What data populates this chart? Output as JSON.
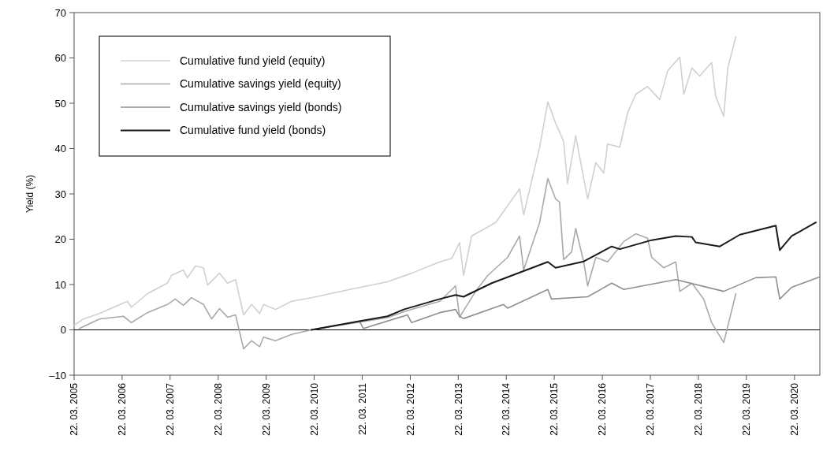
{
  "chart_data": {
    "type": "line",
    "ylabel": "Yield (%)",
    "xlim": [
      "2005-03-22",
      "2020-10-01"
    ],
    "xticks": [
      {
        "value": "2005-03-22",
        "label": "22. 03. 2005"
      },
      {
        "value": "2006-03-22",
        "label": "22. 03. 2006"
      },
      {
        "value": "2007-03-22",
        "label": "22. 03. 2007"
      },
      {
        "value": "2008-03-22",
        "label": "22. 03. 2008"
      },
      {
        "value": "2009-03-22",
        "label": "22. 03. 2009"
      },
      {
        "value": "2010-03-22",
        "label": "22. 03. 2010"
      },
      {
        "value": "2011-03-22",
        "label": "22. 03. 2011"
      },
      {
        "value": "2012-03-22",
        "label": "22. 03. 2012"
      },
      {
        "value": "2013-03-22",
        "label": "22. 03. 2013"
      },
      {
        "value": "2014-03-22",
        "label": "22. 03. 2014"
      },
      {
        "value": "2015-03-22",
        "label": "22. 03. 2015"
      },
      {
        "value": "2016-03-22",
        "label": "22. 03. 2016"
      },
      {
        "value": "2017-03-22",
        "label": "22. 03. 2017"
      },
      {
        "value": "2018-03-22",
        "label": "22. 03. 2018"
      },
      {
        "value": "2019-03-22",
        "label": "22. 03. 2019"
      },
      {
        "value": "2020-03-22",
        "label": "22. 03. 2020"
      }
    ],
    "ylim": [
      -10,
      70
    ],
    "yticks": [
      {
        "value": -10,
        "label": "–10"
      },
      0,
      10,
      20,
      30,
      40,
      50,
      60,
      70
    ],
    "grid": false,
    "legend": "top left",
    "marker": "none",
    "line_style": "solid",
    "ref_lines": [
      {
        "axis": "y",
        "value": 0,
        "color": "#000000"
      }
    ],
    "series": [
      {
        "name": "Cumulative fund yield (equity)",
        "color": "#d0d0d0",
        "x": [
          "2005-03-22",
          "2005-06",
          "2005-10",
          "2006-05",
          "2006-06",
          "2006-10",
          "2007-03",
          "2007-04",
          "2007-07",
          "2007-08",
          "2007-10",
          "2007-12",
          "2008-01",
          "2008-04",
          "2008-06",
          "2008-08",
          "2008-10",
          "2008-12",
          "2009-02",
          "2009-03",
          "2009-06",
          "2009-10",
          "2010-03",
          "2011-01",
          "2011-10",
          "2012-04",
          "2012-11",
          "2013-02",
          "2013-04",
          "2013-05",
          "2013-07",
          "2014-01",
          "2014-07",
          "2014-08",
          "2014-12",
          "2015-02",
          "2015-04",
          "2015-06",
          "2015-07",
          "2015-09",
          "2015-12",
          "2016-02",
          "2016-04",
          "2016-05",
          "2016-08",
          "2016-10",
          "2016-12",
          "2017-03",
          "2017-06",
          "2017-08",
          "2017-11",
          "2017-12",
          "2018-02",
          "2018-04",
          "2018-07",
          "2018-08",
          "2018-10",
          "2018-11",
          "2019-01"
        ],
        "values": [
          1.0,
          2.4,
          3.6,
          6.3,
          5.0,
          8.0,
          10.3,
          12.0,
          13.2,
          11.5,
          14.1,
          13.7,
          9.9,
          12.5,
          10.3,
          11.1,
          3.3,
          5.6,
          3.6,
          5.6,
          4.5,
          6.3,
          7.1,
          9.0,
          10.6,
          12.5,
          15.0,
          15.8,
          19.3,
          12.0,
          20.7,
          23.7,
          31.1,
          25.4,
          40.3,
          50.3,
          45.6,
          41.6,
          32.3,
          42.8,
          28.9,
          36.9,
          34.6,
          41.0,
          40.3,
          48.0,
          52.0,
          53.7,
          50.8,
          57.2,
          60.2,
          52.0,
          57.8,
          56.0,
          59.0,
          51.5,
          47.1,
          57.8,
          64.7
        ]
      },
      {
        "name": "Cumulative savings yield (equity)",
        "color": "#a9a9a9",
        "x": [
          "2005-05",
          "2005-10",
          "2006-04",
          "2006-06",
          "2006-10",
          "2007-03",
          "2007-05",
          "2007-07",
          "2007-09",
          "2007-12",
          "2008-02",
          "2008-04",
          "2008-06",
          "2008-08",
          "2008-10",
          "2008-12",
          "2009-02",
          "2009-03",
          "2009-06",
          "2009-10",
          "2010-03",
          "2011-03",
          "2011-10",
          "2012-02",
          "2012-11",
          "2013-03",
          "2013-04",
          "2013-08",
          "2013-11",
          "2014-04",
          "2014-07",
          "2014-08",
          "2014-12",
          "2015-02",
          "2015-04",
          "2015-05",
          "2015-06",
          "2015-08",
          "2015-09",
          "2015-11",
          "2015-12",
          "2016-02",
          "2016-05",
          "2016-09",
          "2016-12",
          "2017-03",
          "2017-04",
          "2017-07",
          "2017-10",
          "2017-11",
          "2018-02",
          "2018-05",
          "2018-07",
          "2018-10",
          "2019-01"
        ],
        "values": [
          0.3,
          2.4,
          3.0,
          1.6,
          3.8,
          5.6,
          6.8,
          5.4,
          7.1,
          5.6,
          2.4,
          4.7,
          2.8,
          3.3,
          -4.2,
          -2.4,
          -3.7,
          -1.6,
          -2.4,
          -1.0,
          0.0,
          1.7,
          2.7,
          4.0,
          6.3,
          9.7,
          2.8,
          8.5,
          12.0,
          16.0,
          20.7,
          13.2,
          23.7,
          33.4,
          28.9,
          28.2,
          15.5,
          17.2,
          22.4,
          15.0,
          9.7,
          16.0,
          15.0,
          19.5,
          21.2,
          20.2,
          16.0,
          13.7,
          15.0,
          8.5,
          10.3,
          6.8,
          1.6,
          -2.8,
          8.0
        ]
      },
      {
        "name": "Cumulative savings yield (bonds)",
        "color": "#8f8f8f",
        "x": [
          "2010-03",
          "2011-03",
          "2011-04",
          "2012-03",
          "2012-04",
          "2012-11",
          "2013-03",
          "2013-04",
          "2013-05",
          "2014-03",
          "2014-04",
          "2015-02",
          "2015-03",
          "2015-12",
          "2016-06",
          "2016-09",
          "2017-10",
          "2018-10",
          "2019-06",
          "2019-11",
          "2019-12",
          "2020-03",
          "2020-10"
        ],
        "values": [
          0.0,
          1.9,
          0.3,
          3.3,
          1.6,
          3.8,
          4.5,
          3.0,
          2.5,
          5.6,
          4.8,
          8.9,
          6.8,
          7.3,
          10.3,
          8.9,
          11.1,
          8.5,
          11.5,
          11.7,
          6.8,
          9.4,
          11.7
        ]
      },
      {
        "name": "Cumulative fund yield (bonds)",
        "color": "#1a1a1a",
        "x": [
          "2010-03",
          "2011-03",
          "2011-10",
          "2012-02",
          "2012-11",
          "2013-03",
          "2013-05",
          "2013-12",
          "2015-02",
          "2015-04",
          "2015-11",
          "2016-06",
          "2016-08",
          "2017-04",
          "2017-10",
          "2018-02",
          "2018-03",
          "2018-09",
          "2019-02",
          "2019-11",
          "2019-12",
          "2020-03",
          "2020-09"
        ],
        "values": [
          0.0,
          1.9,
          3.0,
          4.5,
          6.8,
          7.7,
          7.3,
          10.3,
          15.0,
          13.7,
          15.1,
          18.4,
          17.8,
          19.8,
          20.7,
          20.5,
          19.3,
          18.4,
          21.0,
          23.0,
          17.6,
          20.7,
          23.7
        ]
      }
    ]
  }
}
